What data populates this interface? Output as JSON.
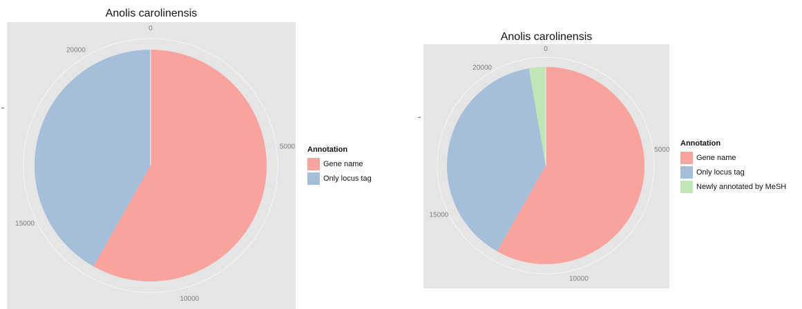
{
  "chart_data": [
    {
      "type": "pie",
      "title": "Anolis carolinensis",
      "legend_title": "Annotation",
      "legend_position": "right",
      "axis_ticks": [
        "0",
        "5000",
        "10000",
        "15000",
        "20000"
      ],
      "axis_max": 22000,
      "slices": [
        {
          "label": "Gene name",
          "value": 12800,
          "color": "#f8a39d"
        },
        {
          "label": "Only locus tag",
          "value": 9200,
          "color": "#a5bed9"
        }
      ]
    },
    {
      "type": "pie",
      "title": "Anolis carolinensis",
      "legend_title": "Annotation",
      "legend_position": "right",
      "axis_ticks": [
        "0",
        "5000",
        "10000",
        "15000",
        "20000"
      ],
      "axis_max": 22000,
      "slices": [
        {
          "label": "Gene name",
          "value": 12800,
          "color": "#f8a39d"
        },
        {
          "label": "Only locus tag",
          "value": 8600,
          "color": "#a5bed9"
        },
        {
          "label": "Newly annotated by MeSH",
          "value": 600,
          "color": "#c0e6b6"
        }
      ]
    }
  ]
}
